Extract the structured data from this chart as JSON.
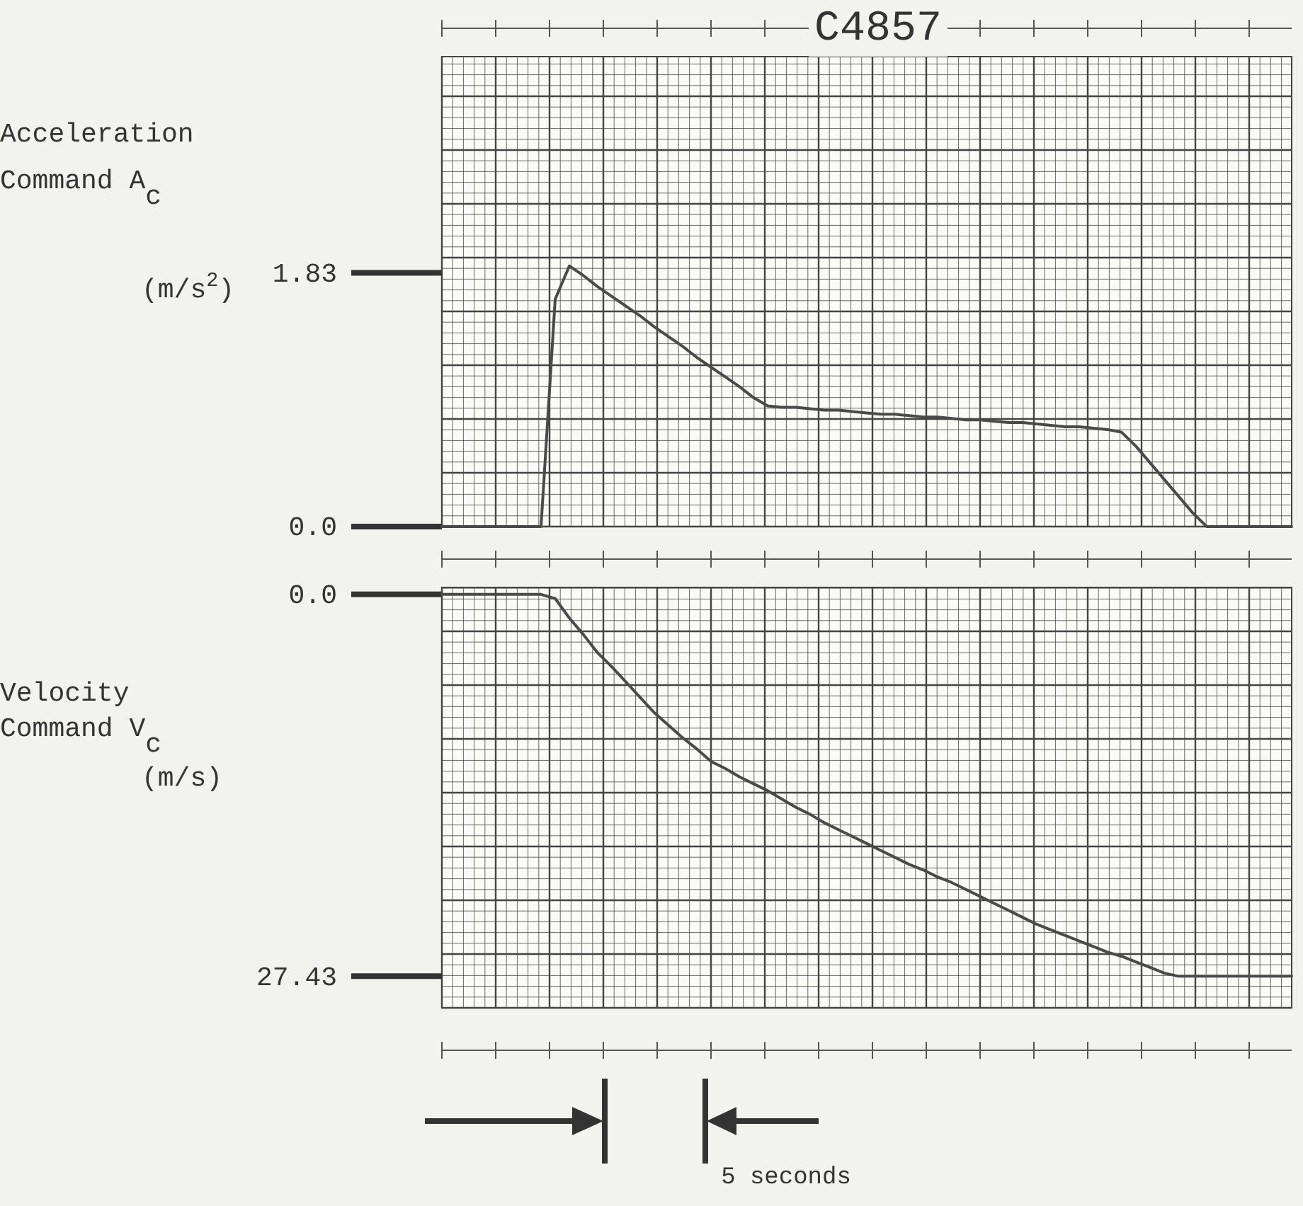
{
  "chart_data": [
    {
      "type": "line",
      "ylabel": "Acceleration\nCommand  A$_{c}$\n(m/s$^{2}$)",
      "annotations": [
        "C4857"
      ],
      "tick_labels": "y",
      "grid": true,
      "color": "#4a4a4a",
      "categories": [
        null,
        null,
        null,
        null,
        null,
        null,
        null,
        null,
        null,
        null,
        null,
        null,
        null,
        null,
        null,
        null,
        null,
        null,
        null,
        null,
        null,
        null,
        null,
        null,
        null,
        null,
        null,
        null,
        null,
        null,
        null,
        null,
        null,
        null,
        null,
        null,
        null,
        null,
        null,
        null,
        null,
        null,
        null,
        null,
        null,
        null,
        null,
        null,
        null,
        null,
        null,
        null,
        null,
        null,
        null,
        null,
        null,
        null,
        null,
        null,
        null
      ],
      "values": [
        0,
        0,
        0,
        0,
        0,
        0,
        0,
        0,
        1.64,
        1.88,
        1.81,
        1.73,
        1.66,
        1.59,
        1.52,
        1.44,
        1.37,
        1.3,
        1.22,
        1.15,
        1.08,
        1.01,
        0.93,
        0.87,
        0.86,
        0.86,
        0.85,
        0.84,
        0.84,
        0.83,
        0.82,
        0.81,
        0.81,
        0.8,
        0.79,
        0.79,
        0.78,
        0.77,
        0.77,
        0.76,
        0.75,
        0.75,
        0.74,
        0.73,
        0.72,
        0.72,
        0.71,
        0.7,
        0.68,
        0.58,
        0.46,
        0.34,
        0.22,
        0.1,
        0,
        0,
        0,
        0,
        0,
        0,
        0
      ],
      "ylim": [
        0,
        3.39
      ],
      "yticks": [
        {
          "value": 0,
          "label": "0.0"
        },
        1.83
      ]
    },
    {
      "type": "line",
      "ylabel": "Velocity\nCommand  V$_{c}$\n(m/s)",
      "annotations": [
        "5 seconds"
      ],
      "tick_labels": "y",
      "grid": true,
      "color": "#4a4a4a",
      "categories": [
        null,
        null,
        null,
        null,
        null,
        null,
        null,
        null,
        null,
        null,
        null,
        null,
        null,
        null,
        null,
        null,
        null,
        null,
        null,
        null,
        null,
        null,
        null,
        null,
        null,
        null,
        null,
        null,
        null,
        null,
        null,
        null,
        null,
        null,
        null,
        null,
        null,
        null,
        null,
        null,
        null,
        null,
        null,
        null,
        null,
        null,
        null,
        null,
        null,
        null,
        null,
        null,
        null,
        null,
        null,
        null,
        null,
        null,
        null,
        null,
        null
      ],
      "values": [
        0,
        0,
        0,
        0,
        0,
        0,
        0,
        0,
        0.3,
        1.7,
        2.9,
        4.2,
        5.2,
        6.3,
        7.4,
        8.5,
        9.4,
        10.3,
        11.1,
        12.0,
        12.5,
        13.1,
        13.6,
        14.1,
        14.7,
        15.3,
        15.8,
        16.4,
        16.9,
        17.4,
        17.9,
        18.4,
        18.9,
        19.4,
        19.8,
        20.3,
        20.7,
        21.2,
        21.7,
        22.2,
        22.7,
        23.2,
        23.7,
        24.1,
        24.5,
        24.9,
        25.3,
        25.7,
        26.0,
        26.4,
        26.8,
        27.2,
        27.43,
        27.43,
        27.43,
        27.43,
        27.43,
        27.43,
        27.43,
        27.43,
        27.43
      ],
      "ylim": [
        29.7,
        -0.5
      ],
      "yticks": [
        {
          "value": 0,
          "label": "0.0"
        },
        27.43
      ]
    }
  ]
}
